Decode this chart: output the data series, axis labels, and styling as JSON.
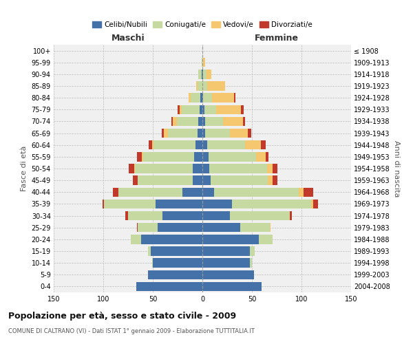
{
  "age_groups": [
    "0-4",
    "5-9",
    "10-14",
    "15-19",
    "20-24",
    "25-29",
    "30-34",
    "35-39",
    "40-44",
    "45-49",
    "50-54",
    "55-59",
    "60-64",
    "65-69",
    "70-74",
    "75-79",
    "80-84",
    "85-89",
    "90-94",
    "95-99",
    "100+"
  ],
  "birth_years": [
    "2004-2008",
    "1999-2003",
    "1994-1998",
    "1989-1993",
    "1984-1988",
    "1979-1983",
    "1974-1978",
    "1969-1973",
    "1964-1968",
    "1959-1963",
    "1954-1958",
    "1949-1953",
    "1944-1948",
    "1939-1943",
    "1934-1938",
    "1929-1933",
    "1924-1928",
    "1919-1923",
    "1914-1918",
    "1909-1913",
    "≤ 1908"
  ],
  "maschi": {
    "celibi": [
      67,
      55,
      50,
      52,
      62,
      45,
      40,
      47,
      20,
      10,
      10,
      8,
      7,
      5,
      4,
      3,
      2,
      0,
      1,
      0,
      0
    ],
    "coniugati": [
      0,
      0,
      1,
      3,
      10,
      20,
      35,
      52,
      65,
      55,
      58,
      52,
      42,
      30,
      22,
      18,
      10,
      5,
      3,
      1,
      0
    ],
    "vedovi": [
      0,
      0,
      0,
      0,
      0,
      0,
      0,
      0,
      0,
      0,
      1,
      1,
      2,
      4,
      4,
      2,
      2,
      1,
      0,
      0,
      0
    ],
    "divorziati": [
      0,
      0,
      0,
      0,
      0,
      1,
      3,
      2,
      5,
      5,
      5,
      5,
      3,
      2,
      1,
      2,
      0,
      0,
      0,
      0,
      0
    ]
  },
  "femmine": {
    "nubili": [
      60,
      52,
      48,
      48,
      57,
      38,
      28,
      30,
      12,
      8,
      7,
      6,
      5,
      3,
      3,
      2,
      1,
      0,
      1,
      0,
      0
    ],
    "coniugate": [
      0,
      0,
      2,
      5,
      14,
      30,
      60,
      80,
      85,
      58,
      58,
      48,
      38,
      25,
      18,
      12,
      9,
      5,
      3,
      1,
      0
    ],
    "vedove": [
      0,
      0,
      0,
      0,
      0,
      1,
      0,
      2,
      5,
      5,
      6,
      10,
      16,
      18,
      20,
      25,
      22,
      18,
      5,
      2,
      0
    ],
    "divorziate": [
      0,
      0,
      0,
      0,
      0,
      0,
      2,
      5,
      10,
      5,
      5,
      3,
      5,
      3,
      2,
      3,
      1,
      0,
      0,
      0,
      0
    ]
  },
  "colors": {
    "celibi": "#4472a8",
    "coniugati": "#c5d9a0",
    "vedovi": "#f5c870",
    "divorziati": "#c0392b"
  },
  "xlim": 150,
  "title": "Popolazione per età, sesso e stato civile - 2009",
  "subtitle": "COMUNE DI CALTRANO (VI) - Dati ISTAT 1° gennaio 2009 - Elaborazione TUTTITALIA.IT",
  "ylabel_left": "Fasce di età",
  "ylabel_right": "Anni di nascita",
  "xlabel_maschi": "Maschi",
  "xlabel_femmine": "Femmine",
  "bg_color": "#ffffff",
  "plot_bg_color": "#f0f0f0"
}
